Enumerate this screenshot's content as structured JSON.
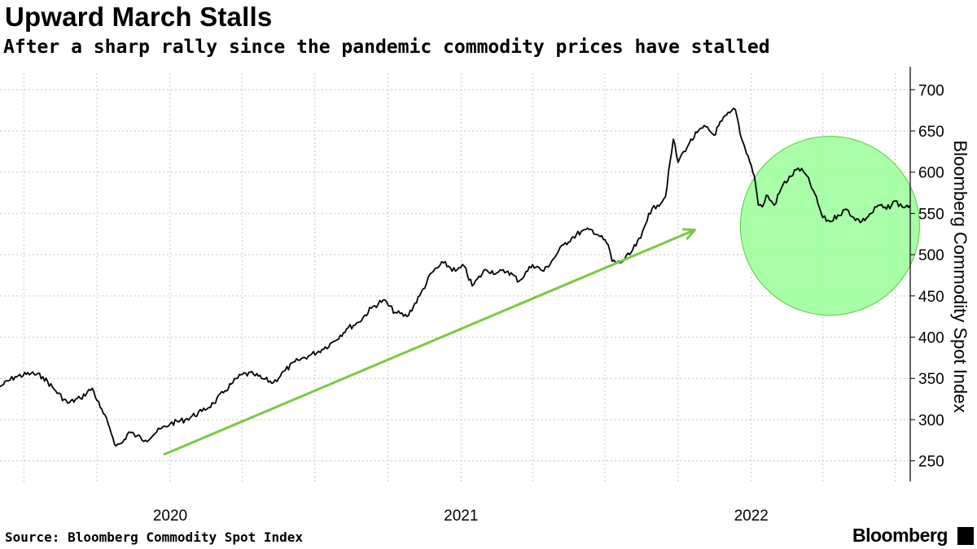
{
  "header": {
    "title": "Upward March Stalls",
    "subtitle": "After a sharp rally since the pandemic commodity prices have stalled"
  },
  "footer": {
    "source": "Source: Bloomberg Commodity Spot Index",
    "brand": "Bloomberg"
  },
  "colors": {
    "line": "#000000",
    "arrow": "#7ac943",
    "highlight_fill": "#99ff99",
    "highlight_stroke": "#55cc33",
    "grid": "#c8c8c8"
  },
  "chart_data": {
    "type": "line",
    "title": "Upward March Stalls",
    "subtitle": "After a sharp rally since the pandemic commodity prices have stalled",
    "xlabel": "",
    "ylabel": "Bloomberg Commodity Spot Index",
    "ylim": [
      225,
      720
    ],
    "xlim": [
      "2019-06-01",
      "2022-07-20"
    ],
    "yticks": [
      250,
      300,
      350,
      400,
      450,
      500,
      550,
      600,
      650,
      700
    ],
    "xticks": [
      {
        "label": "2020",
        "date": "2020-01-01"
      },
      {
        "label": "2021",
        "date": "2021-01-01"
      },
      {
        "label": "2022",
        "date": "2022-01-01"
      }
    ],
    "grid": true,
    "y_axis_side": "right",
    "series": [
      {
        "x": [
          "2019-06-01",
          "2019-06-20",
          "2019-07-10",
          "2019-07-25",
          "2019-08-10",
          "2019-08-25",
          "2019-09-10",
          "2019-09-25",
          "2019-10-05",
          "2019-10-15",
          "2019-10-25",
          "2019-11-02",
          "2019-11-10",
          "2019-11-20",
          "2019-12-01",
          "2019-12-15",
          "2020-01-01",
          "2020-01-20",
          "2020-02-10",
          "2020-02-25",
          "2020-03-10",
          "2020-03-20",
          "2020-04-01",
          "2020-04-15",
          "2020-04-25",
          "2020-05-10",
          "2020-05-25",
          "2020-06-10",
          "2020-06-25",
          "2020-07-10",
          "2020-07-25",
          "2020-08-10",
          "2020-08-25",
          "2020-09-10",
          "2020-09-25",
          "2020-10-10",
          "2020-10-25",
          "2020-11-10",
          "2020-11-25",
          "2020-12-10",
          "2020-12-25",
          "2021-01-05",
          "2021-01-15",
          "2021-02-01",
          "2021-02-15",
          "2021-03-01",
          "2021-03-15",
          "2021-04-01",
          "2021-04-15",
          "2021-05-01",
          "2021-05-10",
          "2021-05-20",
          "2021-06-01",
          "2021-06-15",
          "2021-06-25",
          "2021-07-05",
          "2021-07-10",
          "2021-07-20",
          "2021-08-01",
          "2021-08-15",
          "2021-08-25",
          "2021-09-05",
          "2021-09-15",
          "2021-09-25",
          "2021-10-01",
          "2021-10-08",
          "2021-10-15",
          "2021-10-25",
          "2021-11-05",
          "2021-11-15",
          "2021-11-25",
          "2021-12-05",
          "2021-12-12",
          "2021-12-20",
          "2021-12-28",
          "2022-01-05",
          "2022-01-10",
          "2022-01-15",
          "2022-01-20",
          "2022-01-30",
          "2022-02-10",
          "2022-02-20",
          "2022-03-01",
          "2022-03-10",
          "2022-03-20",
          "2022-04-01",
          "2022-04-10",
          "2022-04-20",
          "2022-05-01",
          "2022-05-10",
          "2022-05-20",
          "2022-06-01",
          "2022-06-10",
          "2022-06-20",
          "2022-07-01",
          "2022-07-10",
          "2022-07-20"
        ],
        "y": [
          340,
          352,
          356,
          352,
          335,
          320,
          326,
          338,
          315,
          295,
          268,
          272,
          285,
          280,
          275,
          285,
          295,
          300,
          310,
          320,
          335,
          345,
          355,
          355,
          350,
          345,
          360,
          372,
          378,
          385,
          395,
          410,
          418,
          435,
          445,
          430,
          425,
          450,
          478,
          490,
          480,
          486,
          462,
          482,
          478,
          480,
          468,
          488,
          480,
          500,
          512,
          520,
          528,
          530,
          522,
          512,
          492,
          490,
          500,
          520,
          550,
          560,
          570,
          640,
          612,
          625,
          635,
          648,
          655,
          645,
          662,
          672,
          676,
          640,
          620,
          595,
          560,
          558,
          572,
          560,
          585,
          595,
          605,
          598,
          578,
          545,
          540,
          548,
          555,
          545,
          540,
          550,
          560,
          555,
          565,
          558,
          560
        ]
      }
    ],
    "annotations": [
      {
        "type": "arrow",
        "from": {
          "x": "2019-12-25",
          "y": 258
        },
        "to": {
          "x": "2021-10-22",
          "y": 530
        }
      },
      {
        "type": "circle",
        "center": {
          "x": "2022-04-10",
          "y": 535
        }
      }
    ]
  }
}
